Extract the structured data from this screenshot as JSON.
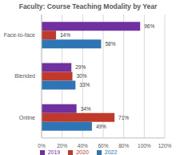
{
  "chart_data": {
    "type": "bar",
    "title": "Faculty: Course Teaching Modality by Year",
    "orientation": "horizontal",
    "categories": [
      "Face-to-face",
      "Blended",
      "Online"
    ],
    "series": [
      {
        "name": "2019",
        "color": "#7030a0",
        "values": [
          96,
          29,
          34
        ],
        "value_labels": [
          "96%",
          "29%",
          "34%"
        ]
      },
      {
        "name": "2020",
        "color": "#c0392b",
        "values": [
          14,
          30,
          71
        ],
        "value_labels": [
          "14%",
          "30%",
          "71%"
        ]
      },
      {
        "name": "2022",
        "color": "#2e75b6",
        "values": [
          58,
          33,
          49
        ],
        "value_labels": [
          "58%",
          "33%",
          "49%"
        ]
      }
    ],
    "xlim": [
      0,
      120
    ],
    "xticks": [
      {
        "value": 0,
        "label": "0%"
      },
      {
        "value": 20,
        "label": "20%"
      },
      {
        "value": 40,
        "label": "40%"
      },
      {
        "value": 60,
        "label": "60%"
      },
      {
        "value": 80,
        "label": "80%"
      },
      {
        "value": 100,
        "label": "100%"
      },
      {
        "value": 120,
        "label": "120%"
      }
    ],
    "grid": true,
    "data_labels": true,
    "legend": "bottom"
  }
}
